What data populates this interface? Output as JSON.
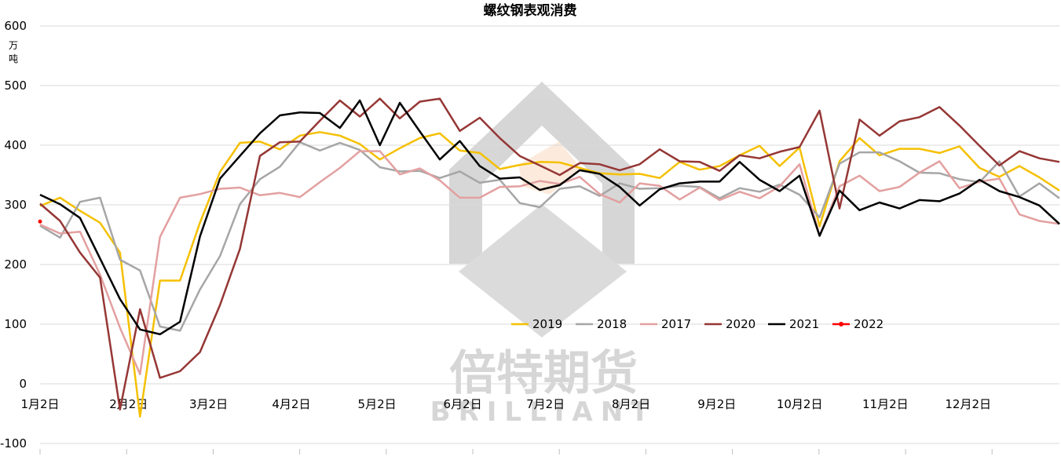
{
  "chart_data": {
    "type": "line",
    "title": "螺纹钢表观消费",
    "ylabel_unit": [
      "万",
      "吨"
    ],
    "xlabel": "",
    "ylim": [
      -100,
      600
    ],
    "yticks": [
      -100,
      0,
      100,
      200,
      300,
      400,
      500,
      600
    ],
    "grid": true,
    "legend_position": "center-right",
    "x_tick_labels": [
      "1月2日",
      "2月2日",
      "3月2日",
      "4月2日",
      "5月2日",
      "6月2日",
      "7月2日",
      "8月2日",
      "9月2日",
      "10月2日",
      "11月2日",
      "12月2日"
    ],
    "x_tick_weeks": [
      0,
      4.43,
      8.43,
      12.57,
      16.86,
      21.14,
      25.29,
      29.57,
      33.86,
      38.0,
      42.29,
      46.43
    ],
    "week_span": [
      0,
      51
    ],
    "watermark": {
      "chinese": "倍特期货",
      "english": "BRILLIANT"
    },
    "series": [
      {
        "name": "2019",
        "color": "#f5c000",
        "values": [
          298,
          312,
          290,
          270,
          220,
          -55,
          173,
          173,
          270,
          355,
          404,
          406,
          393,
          416,
          422,
          416,
          402,
          376,
          395,
          412,
          420,
          391,
          387,
          360,
          367,
          372,
          371,
          362,
          353,
          351,
          352,
          345,
          372,
          359,
          365,
          383,
          399,
          365,
          396,
          264,
          373,
          412,
          383,
          394,
          394,
          387,
          398,
          362,
          347,
          365,
          346,
          324
        ]
      },
      {
        "name": "2018",
        "color": "#a6a6a6",
        "values": [
          265,
          245,
          305,
          312,
          208,
          190,
          96,
          89,
          158,
          214,
          301,
          343,
          364,
          405,
          391,
          404,
          392,
          363,
          356,
          357,
          345,
          356,
          337,
          342,
          303,
          296,
          327,
          331,
          315,
          336,
          327,
          328,
          332,
          330,
          311,
          328,
          322,
          334,
          317,
          279,
          369,
          388,
          388,
          373,
          354,
          353,
          343,
          338,
          373,
          314,
          336,
          311
        ]
      },
      {
        "name": "2017",
        "color": "#e3a0a0",
        "values": [
          267,
          252,
          255,
          183,
          94,
          16,
          246,
          312,
          318,
          327,
          329,
          316,
          320,
          313,
          338,
          362,
          390,
          390,
          351,
          361,
          341,
          312,
          312,
          330,
          331,
          340,
          335,
          347,
          318,
          304,
          336,
          332,
          309,
          329,
          308,
          322,
          311,
          331,
          368,
          248,
          331,
          349,
          323,
          330,
          354,
          373,
          328,
          339,
          344,
          284,
          273,
          268
        ]
      },
      {
        "name": "2020",
        "color": "#953735",
        "values": [
          302,
          273,
          220,
          178,
          -43,
          125,
          10,
          21,
          53,
          132,
          226,
          382,
          405,
          406,
          441,
          475,
          448,
          478,
          445,
          473,
          478,
          424,
          446,
          412,
          382,
          366,
          350,
          370,
          368,
          358,
          368,
          393,
          373,
          372,
          357,
          383,
          378,
          389,
          397,
          458,
          294,
          443,
          416,
          440,
          447,
          464,
          433,
          399,
          366,
          390,
          378,
          372
        ]
      },
      {
        "name": "2021",
        "color": "#000000",
        "values": [
          317,
          301,
          278,
          210,
          142,
          91,
          83,
          104,
          247,
          344,
          382,
          420,
          450,
          455,
          454,
          429,
          475,
          400,
          471,
          423,
          376,
          407,
          365,
          344,
          346,
          325,
          333,
          358,
          352,
          330,
          299,
          326,
          336,
          339,
          339,
          372,
          342,
          323,
          349,
          248,
          324,
          291,
          304,
          294,
          308,
          306,
          319,
          342,
          323,
          313,
          299,
          268
        ]
      },
      {
        "name": "2022",
        "color": "#ff0000",
        "values": [
          272
        ]
      }
    ]
  }
}
